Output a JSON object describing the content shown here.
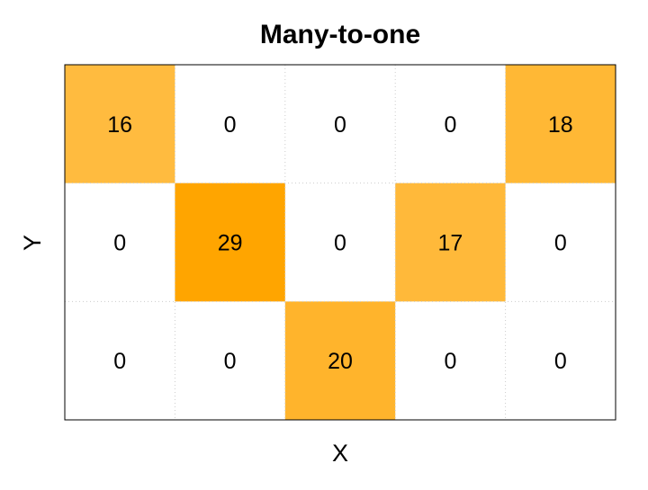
{
  "chart_data": {
    "type": "heatmap",
    "title": "Many-to-one",
    "xlabel": "X",
    "ylabel": "Y",
    "grid": true,
    "legend": "none",
    "matrix": [
      [
        16,
        0,
        0,
        0,
        18
      ],
      [
        0,
        29,
        0,
        17,
        0
      ],
      [
        0,
        0,
        20,
        0,
        0
      ]
    ],
    "color_low": "#ffffff",
    "color_high": "#ffa500",
    "grid_color": "#cccccc"
  }
}
